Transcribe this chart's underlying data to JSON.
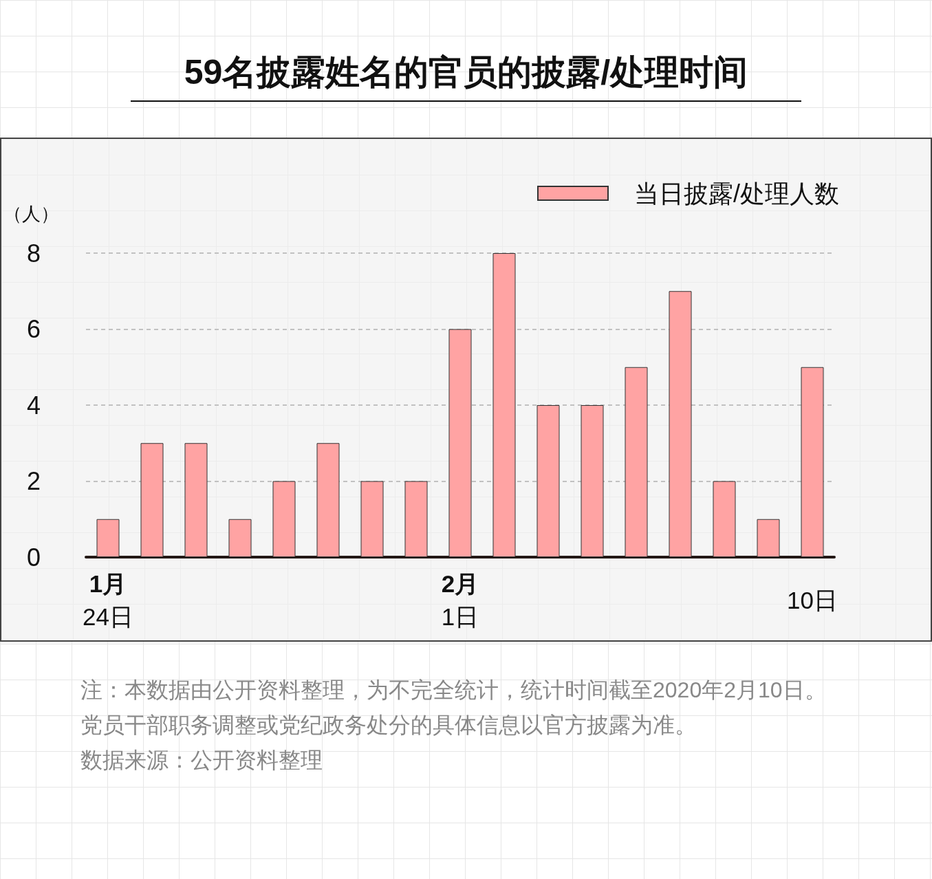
{
  "chart_data": {
    "type": "bar",
    "title": "59名披露姓名的官员的披露/处理时间",
    "ylabel": "（人）",
    "categories": [
      "1月\n24日",
      null,
      null,
      null,
      null,
      null,
      null,
      null,
      "2月\n1日",
      null,
      null,
      null,
      null,
      null,
      null,
      null,
      "10日"
    ],
    "series": [
      {
        "name": "当日披露/处理人数",
        "color": "#ffa3a3",
        "values": [
          1,
          3,
          3,
          1,
          2,
          3,
          2,
          2,
          6,
          8,
          4,
          4,
          5,
          7,
          2,
          1,
          5
        ]
      }
    ],
    "ylim": [
      0,
      8
    ],
    "yticks": [
      0,
      2,
      4,
      6,
      8
    ],
    "grid": "y",
    "legend": "top right",
    "annotations": [
      "注：本数据由公开资料整理，为不完全统计，统计时间截至2020年2月10日。",
      "党员干部职务调整或党纪政务处分的具体信息以官方披露为准。",
      "数据来源：公开资料整理"
    ]
  }
}
